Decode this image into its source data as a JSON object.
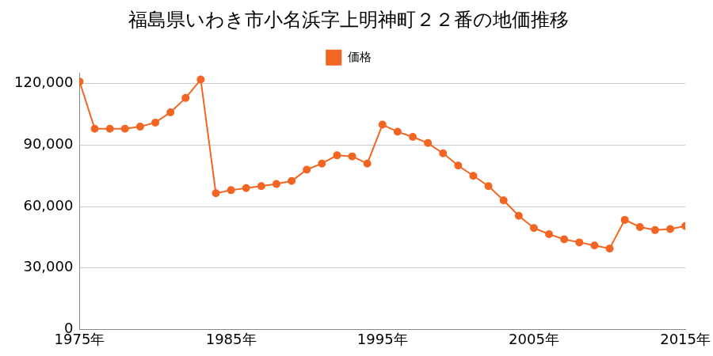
{
  "chart_data": {
    "type": "line",
    "title": "福島県いわき市小名浜字上明神町２２番の地価推移",
    "x": [
      1975,
      1976,
      1977,
      1978,
      1979,
      1980,
      1981,
      1982,
      1983,
      1984,
      1985,
      1986,
      1987,
      1988,
      1989,
      1990,
      1991,
      1992,
      1993,
      1994,
      1995,
      1996,
      1997,
      1998,
      1999,
      2000,
      2001,
      2002,
      2003,
      2004,
      2005,
      2006,
      2007,
      2008,
      2009,
      2010,
      2011,
      2012,
      2013,
      2014,
      2015
    ],
    "series": [
      {
        "name": "価格",
        "color": "#f26522",
        "marker": "circle",
        "values": [
          121000,
          98000,
          98000,
          98000,
          99000,
          101000,
          106000,
          113000,
          122000,
          66500,
          68000,
          69000,
          70000,
          71000,
          72500,
          78000,
          81000,
          85000,
          84500,
          81000,
          100000,
          96500,
          94000,
          91000,
          86000,
          80000,
          75000,
          70000,
          63000,
          55500,
          49500,
          46500,
          44000,
          42500,
          41000,
          39500,
          53500,
          50000,
          48500,
          49000,
          50500
        ]
      }
    ],
    "xlim": [
      1975,
      2015
    ],
    "xticks": [
      {
        "value": 1975,
        "label": "1975年"
      },
      {
        "value": 1985,
        "label": "1985年"
      },
      {
        "value": 1995,
        "label": "1995年"
      },
      {
        "value": 2005,
        "label": "2005年"
      },
      {
        "value": 2015,
        "label": "2015年"
      }
    ],
    "ylim": [
      0,
      125000
    ],
    "yticks": [
      0,
      {
        "value": 30000,
        "label": "30,000"
      },
      {
        "value": 60000,
        "label": "60,000"
      },
      {
        "value": 90000,
        "label": "90,000"
      },
      {
        "value": 120000,
        "label": "120,000"
      }
    ],
    "grid": "y",
    "legend": "top"
  }
}
